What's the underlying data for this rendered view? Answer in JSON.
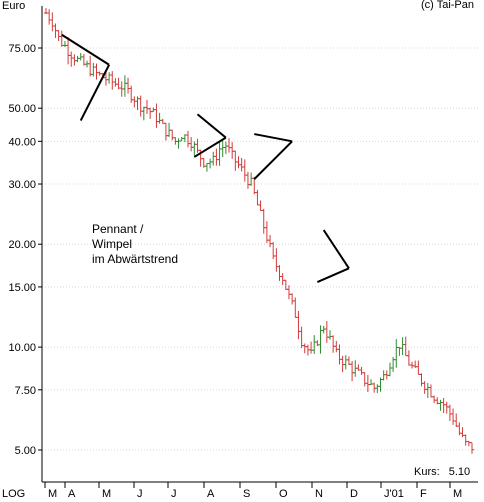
{
  "chart_data": {
    "type": "candlestick",
    "currency": "Euro",
    "copyright": "(c) Tai-Pan",
    "scale_label": "LOG",
    "y_scale": "log",
    "ylim": [
      4.3,
      100
    ],
    "y_ticks": [
      "75.00",
      "50.00",
      "40.00",
      "30.00",
      "20.00",
      "15.00",
      "10.00",
      "7.50",
      "5.00"
    ],
    "y_tick_values": [
      75,
      50,
      40,
      30,
      20,
      15,
      10,
      7.5,
      5
    ],
    "x_ticks": [
      "M",
      "A",
      "M",
      "J",
      "J",
      "A",
      "S",
      "O",
      "N",
      "D",
      "J'01",
      "F",
      "M"
    ],
    "annotation": "Pennant /\nWimpel\nim Abwärtstrend",
    "kurs_label": "Kurs:",
    "kurs_value": "5.10",
    "colors": {
      "up": "#2e8b2e",
      "down": "#d23a3a",
      "pattern": "#000000",
      "axis": "#000000"
    },
    "trend_path": [
      [
        0,
        95
      ],
      [
        2,
        90
      ],
      [
        4,
        80
      ],
      [
        7,
        74
      ],
      [
        10,
        69
      ],
      [
        13,
        66
      ],
      [
        16,
        63
      ],
      [
        19,
        61
      ],
      [
        22,
        59
      ],
      [
        24,
        58
      ],
      [
        27,
        55
      ],
      [
        30,
        51
      ],
      [
        32,
        50
      ],
      [
        35,
        47
      ],
      [
        37,
        44
      ],
      [
        39,
        42
      ],
      [
        41,
        40
      ],
      [
        43,
        42
      ],
      [
        46,
        40
      ],
      [
        48,
        37
      ],
      [
        50,
        35
      ],
      [
        53,
        35
      ],
      [
        55,
        38
      ],
      [
        57,
        39
      ],
      [
        59,
        36
      ],
      [
        61,
        34
      ],
      [
        63,
        32
      ],
      [
        65,
        30
      ],
      [
        67,
        26
      ],
      [
        70,
        21
      ],
      [
        72,
        18
      ],
      [
        75,
        16
      ],
      [
        77,
        14
      ],
      [
        79,
        12.5
      ],
      [
        81,
        10.5
      ],
      [
        84,
        9.5
      ],
      [
        86,
        10.5
      ],
      [
        88,
        11.5
      ],
      [
        90,
        10.5
      ],
      [
        92,
        9.5
      ],
      [
        95,
        9
      ],
      [
        98,
        8.5
      ],
      [
        101,
        8
      ],
      [
        104,
        7.6
      ],
      [
        107,
        8.2
      ],
      [
        110,
        9.5
      ],
      [
        112,
        10.2
      ],
      [
        115,
        9
      ],
      [
        118,
        8.2
      ],
      [
        120,
        7.8
      ],
      [
        123,
        7.2
      ],
      [
        126,
        6.8
      ],
      [
        129,
        6.2
      ],
      [
        131,
        5.6
      ],
      [
        133,
        5.2
      ],
      [
        135,
        5.1
      ]
    ],
    "patterns": [
      {
        "lines": [
          [
            [
              5,
              82
            ],
            [
              20,
              67
            ]
          ],
          [
            [
              11,
              46
            ],
            [
              20,
              67
            ]
          ]
        ]
      },
      {
        "lines": [
          [
            [
              48,
              48
            ],
            [
              57,
              41
            ]
          ],
          [
            [
              47,
              36
            ],
            [
              57,
              41
            ]
          ]
        ]
      },
      {
        "lines": [
          [
            [
              66,
              42
            ],
            [
              78,
              40
            ]
          ],
          [
            [
              66,
              31
            ],
            [
              78,
              40
            ]
          ]
        ]
      },
      {
        "lines": [
          [
            [
              88,
              22
            ],
            [
              96,
              17
            ]
          ],
          [
            [
              86,
              15.5
            ],
            [
              96,
              17
            ]
          ]
        ]
      }
    ]
  }
}
